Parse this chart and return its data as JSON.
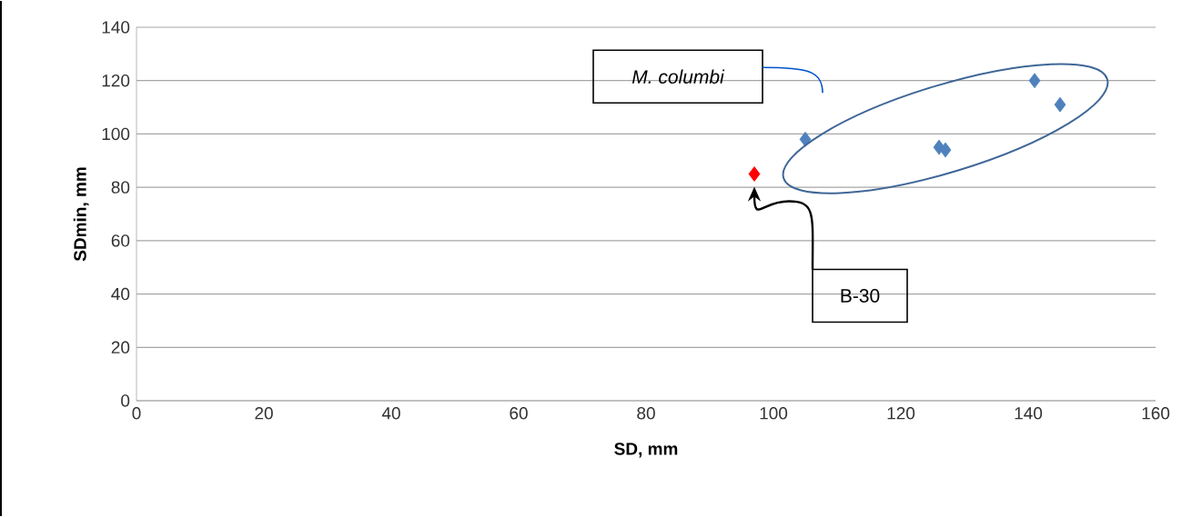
{
  "chart_data": {
    "type": "scatter",
    "xlabel": "SD, mm",
    "ylabel": "SDmin, mm",
    "series": [
      {
        "color": "#4f81bd",
        "x": [
          105,
          126,
          127,
          141,
          145
        ],
        "values": [
          98,
          95,
          94,
          120,
          111
        ]
      },
      {
        "color": "#ff0000",
        "x": [
          97
        ],
        "values": [
          85
        ]
      }
    ],
    "xlim": [
      0,
      160
    ],
    "xticks": [
      0,
      20,
      40,
      60,
      80,
      100,
      120,
      140,
      160
    ],
    "ylim": [
      0,
      140
    ],
    "yticks": [
      0,
      20,
      40,
      60,
      80,
      100,
      120,
      140
    ],
    "grid": "y",
    "marker": "diamond",
    "annotations": [
      "M. columbi",
      "B-30"
    ]
  }
}
